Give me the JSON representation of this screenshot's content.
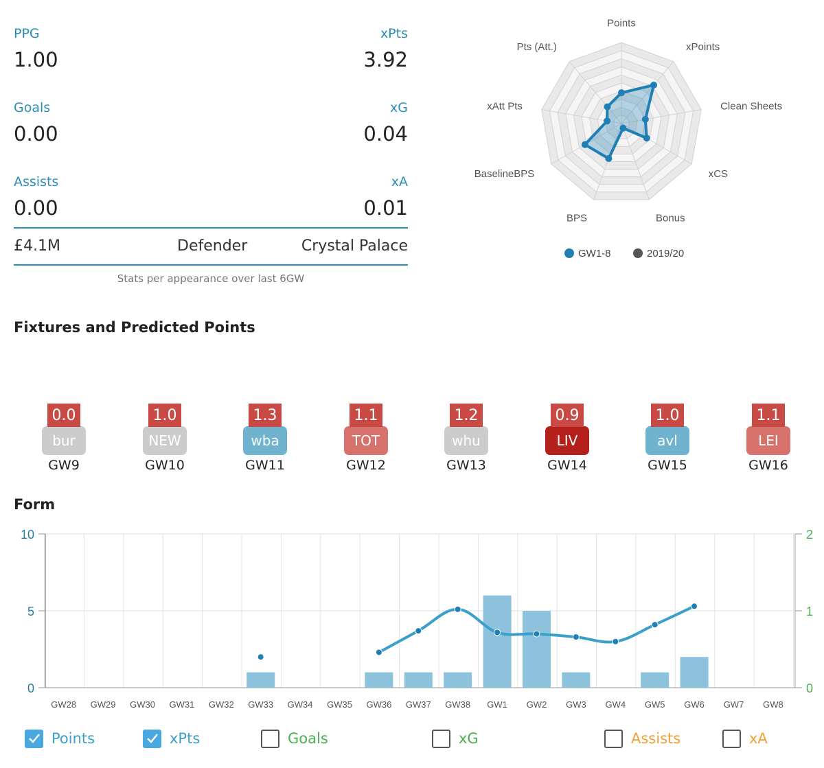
{
  "stats": {
    "rows": [
      {
        "left_label": "PPG",
        "left_value": "1.00",
        "right_label": "xPts",
        "right_value": "3.92"
      },
      {
        "left_label": "Goals",
        "left_value": "0.00",
        "right_label": "xG",
        "right_value": "0.04"
      },
      {
        "left_label": "Assists",
        "left_value": "0.00",
        "right_label": "xA",
        "right_value": "0.01"
      }
    ],
    "price": "£4.1M",
    "position": "Defender",
    "club": "Crystal Palace",
    "note": "Stats per appearance over last 6GW"
  },
  "radar": {
    "axes": [
      "Points",
      "xPoints",
      "Clean Sheets",
      "xCS",
      "Bonus",
      "BPS",
      "BaselineBPS",
      "xAtt Pts",
      "Pts (Att.)"
    ],
    "series": [
      {
        "name": "GW1-8",
        "color": "#1f7fb5",
        "values": [
          0.38,
          0.62,
          0.3,
          0.36,
          0.06,
          0.46,
          0.52,
          0.18,
          0.27
        ]
      },
      {
        "name": "2019/20",
        "color": "#555555",
        "values": []
      }
    ],
    "levels": 10,
    "colors": {
      "line": "#1f7fb5",
      "fill": "rgba(31,127,181,0.30)"
    }
  },
  "fixtures_title": "Fixtures and Predicted Points",
  "fixtures": [
    {
      "points": "0.0",
      "opponent": "bur",
      "gw": "GW9",
      "color": "#cccccc"
    },
    {
      "points": "1.0",
      "opponent": "NEW",
      "gw": "GW10",
      "color": "#cccccc"
    },
    {
      "points": "1.3",
      "opponent": "wba",
      "gw": "GW11",
      "color": "#6fb3cf"
    },
    {
      "points": "1.1",
      "opponent": "TOT",
      "gw": "GW12",
      "color": "#d6726b"
    },
    {
      "points": "1.2",
      "opponent": "whu",
      "gw": "GW13",
      "color": "#cccccc"
    },
    {
      "points": "0.9",
      "opponent": "LIV",
      "gw": "GW14",
      "color": "#b4211c"
    },
    {
      "points": "1.0",
      "opponent": "avl",
      "gw": "GW15",
      "color": "#6fb3cf"
    },
    {
      "points": "1.1",
      "opponent": "LEI",
      "gw": "GW16",
      "color": "#d6726b"
    }
  ],
  "form_title": "Form",
  "chart_data": {
    "type": "bar",
    "categories": [
      "GW28",
      "GW29",
      "GW30",
      "GW31",
      "GW32",
      "GW33",
      "GW34",
      "GW35",
      "GW36",
      "GW37",
      "GW38",
      "GW1",
      "GW2",
      "GW3",
      "GW4",
      "GW5",
      "GW6",
      "GW7",
      "GW8"
    ],
    "series": [
      {
        "name": "Points",
        "type": "bar",
        "color": "#8cc2dc",
        "values": [
          null,
          null,
          null,
          null,
          null,
          1,
          null,
          null,
          1,
          1,
          1,
          6,
          5,
          1,
          null,
          1,
          2,
          null,
          null
        ]
      },
      {
        "name": "xPts",
        "type": "line",
        "color": "#3a9fc9",
        "values": [
          null,
          null,
          null,
          null,
          null,
          2.0,
          null,
          null,
          2.3,
          3.7,
          5.1,
          3.6,
          3.5,
          3.3,
          3.0,
          4.1,
          5.3,
          null,
          null
        ]
      }
    ],
    "ylim_left": [
      0,
      10
    ],
    "yticks_left": [
      "0",
      "5",
      "10"
    ],
    "ylim_right": [
      0,
      2
    ],
    "yticks_right": [
      "0",
      "1",
      "2"
    ],
    "grid": true
  },
  "legend": [
    {
      "label": "Points",
      "checked": true,
      "color": "#3a9fc9"
    },
    {
      "label": "xPts",
      "checked": true,
      "color": "#3a9fc9"
    },
    {
      "label": "Goals",
      "checked": false,
      "color": "#4caf50"
    },
    {
      "label": "xG",
      "checked": false,
      "color": "#4caf50"
    },
    {
      "label": "Assists",
      "checked": false,
      "color": "#f0a030"
    },
    {
      "label": "xA",
      "checked": false,
      "color": "#f0a030"
    }
  ]
}
